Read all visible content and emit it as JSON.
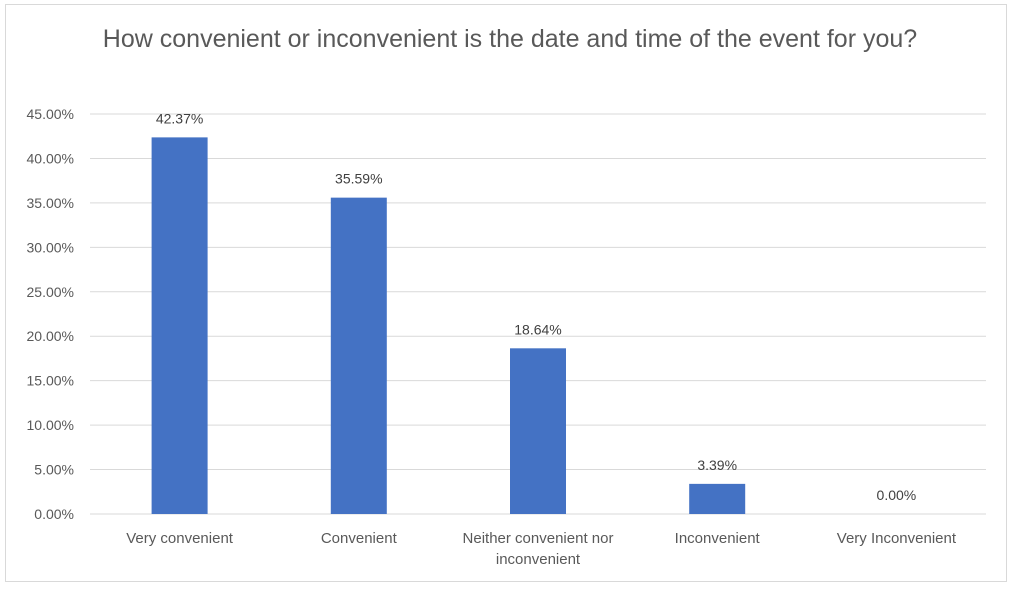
{
  "chart_data": {
    "type": "bar",
    "title": "How convenient or inconvenient is the date and time of the event for you?",
    "categories": [
      [
        "Very convenient"
      ],
      [
        "Convenient"
      ],
      [
        "Neither convenient nor",
        "inconvenient"
      ],
      [
        "Inconvenient"
      ],
      [
        "Very Inconvenient"
      ]
    ],
    "values": [
      42.37,
      35.59,
      18.64,
      3.39,
      0.0
    ],
    "data_labels": [
      "42.37%",
      "35.59%",
      "18.64%",
      "3.39%",
      "0.00%"
    ],
    "y_ticks": [
      "0.00%",
      "5.00%",
      "10.00%",
      "15.00%",
      "20.00%",
      "25.00%",
      "30.00%",
      "35.00%",
      "40.00%",
      "45.00%"
    ],
    "ylim": [
      0,
      45
    ],
    "grid": true,
    "legend": "none",
    "colors": {
      "bar": "#4472c4",
      "grid": "#d9d9d9",
      "text": "#595959"
    }
  }
}
